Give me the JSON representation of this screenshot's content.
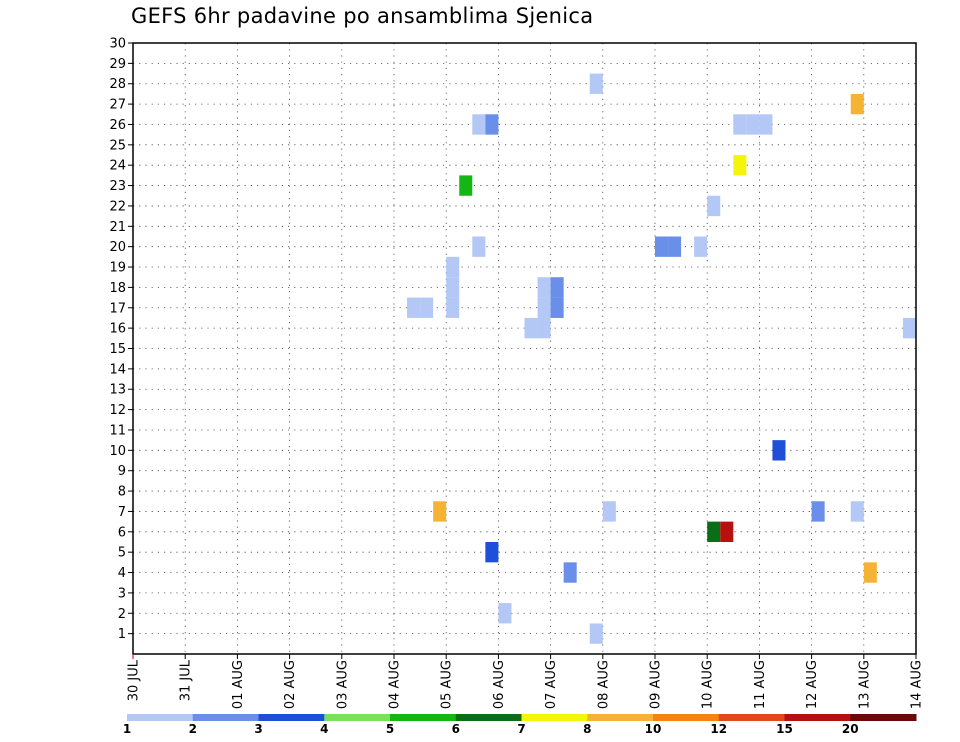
{
  "title": "GEFS 6hr padavine po ansamblima Sjenica",
  "chart_data": {
    "type": "heatmap",
    "title": "GEFS 6hr padavine po ansamblima Sjenica",
    "xlabel": "",
    "ylabel": "",
    "x_categories": [
      "30 JUL",
      "31 JUL",
      "01 AUG",
      "02 AUG",
      "03 AUG",
      "04 AUG",
      "05 AUG",
      "06 AUG",
      "07 AUG",
      "08 AUG",
      "09 AUG",
      "10 AUG",
      "11 AUG",
      "12 AUG",
      "13 AUG",
      "14 AUG"
    ],
    "x_unit": "days since 30 JUL (6-hourly steps)",
    "ylim": [
      0,
      30
    ],
    "y_ticks": [
      1,
      2,
      3,
      4,
      5,
      6,
      7,
      8,
      9,
      10,
      11,
      12,
      13,
      14,
      15,
      16,
      17,
      18,
      19,
      20,
      21,
      22,
      23,
      24,
      25,
      26,
      27,
      28,
      29,
      30
    ],
    "grid": true,
    "legend_placement": "bottom",
    "color_scale": {
      "bins": [
        {
          "from": 1,
          "to": 2,
          "color": "#b4c8f5"
        },
        {
          "from": 2,
          "to": 3,
          "color": "#6a8fe8"
        },
        {
          "from": 3,
          "to": 4,
          "color": "#1f4fd8"
        },
        {
          "from": 4,
          "to": 5,
          "color": "#7de05a"
        },
        {
          "from": 5,
          "to": 6,
          "color": "#14b614"
        },
        {
          "from": 6,
          "to": 7,
          "color": "#0b6d16"
        },
        {
          "from": 7,
          "to": 8,
          "color": "#f5f50a"
        },
        {
          "from": 8,
          "to": 10,
          "color": "#f5b335"
        },
        {
          "from": 10,
          "to": 12,
          "color": "#f5830f"
        },
        {
          "from": 12,
          "to": 15,
          "color": "#e6461e"
        },
        {
          "from": 15,
          "to": 20,
          "color": "#b80f0f"
        },
        {
          "from": 20,
          "to": 30,
          "color": "#6b0909"
        }
      ],
      "labels": [
        "1",
        "2",
        "3",
        "4",
        "5",
        "6",
        "7",
        "8",
        "10",
        "12",
        "15",
        "20"
      ]
    },
    "cells": [
      {
        "day": 8.75,
        "member": 28,
        "bin": 0
      },
      {
        "day": 13.75,
        "member": 27,
        "bin": 7
      },
      {
        "day": 6.5,
        "member": 26,
        "bin": 0
      },
      {
        "day": 6.75,
        "member": 26,
        "bin": 1
      },
      {
        "day": 11.5,
        "member": 26,
        "bin": 0
      },
      {
        "day": 11.75,
        "member": 26,
        "bin": 0
      },
      {
        "day": 12.0,
        "member": 26,
        "bin": 0
      },
      {
        "day": 11.5,
        "member": 24,
        "bin": 6
      },
      {
        "day": 6.25,
        "member": 23,
        "bin": 4
      },
      {
        "day": 11.0,
        "member": 22,
        "bin": 0
      },
      {
        "day": 6.5,
        "member": 20,
        "bin": 0
      },
      {
        "day": 10.0,
        "member": 20,
        "bin": 1
      },
      {
        "day": 10.25,
        "member": 20,
        "bin": 1
      },
      {
        "day": 10.75,
        "member": 20,
        "bin": 0
      },
      {
        "day": 6.0,
        "member": 19,
        "bin": 0
      },
      {
        "day": 6.0,
        "member": 18,
        "bin": 0
      },
      {
        "day": 7.75,
        "member": 18,
        "bin": 0
      },
      {
        "day": 8.0,
        "member": 18,
        "bin": 1
      },
      {
        "day": 5.25,
        "member": 17,
        "bin": 0
      },
      {
        "day": 5.5,
        "member": 17,
        "bin": 0
      },
      {
        "day": 6.0,
        "member": 17,
        "bin": 0
      },
      {
        "day": 7.75,
        "member": 17,
        "bin": 0
      },
      {
        "day": 8.0,
        "member": 17,
        "bin": 1
      },
      {
        "day": 7.5,
        "member": 16,
        "bin": 0
      },
      {
        "day": 7.75,
        "member": 16,
        "bin": 0
      },
      {
        "day": 14.75,
        "member": 16,
        "bin": 0
      },
      {
        "day": 12.25,
        "member": 10,
        "bin": 2
      },
      {
        "day": 5.75,
        "member": 7,
        "bin": 7
      },
      {
        "day": 9.0,
        "member": 7,
        "bin": 0
      },
      {
        "day": 13.0,
        "member": 7,
        "bin": 1
      },
      {
        "day": 13.75,
        "member": 7,
        "bin": 0
      },
      {
        "day": 11.0,
        "member": 6,
        "bin": 5
      },
      {
        "day": 11.25,
        "member": 6,
        "bin": 10
      },
      {
        "day": 6.75,
        "member": 5,
        "bin": 2
      },
      {
        "day": 8.25,
        "member": 4,
        "bin": 1
      },
      {
        "day": 14.0,
        "member": 4,
        "bin": 7
      },
      {
        "day": 7.0,
        "member": 2,
        "bin": 0
      },
      {
        "day": 8.75,
        "member": 1,
        "bin": 0
      }
    ]
  }
}
